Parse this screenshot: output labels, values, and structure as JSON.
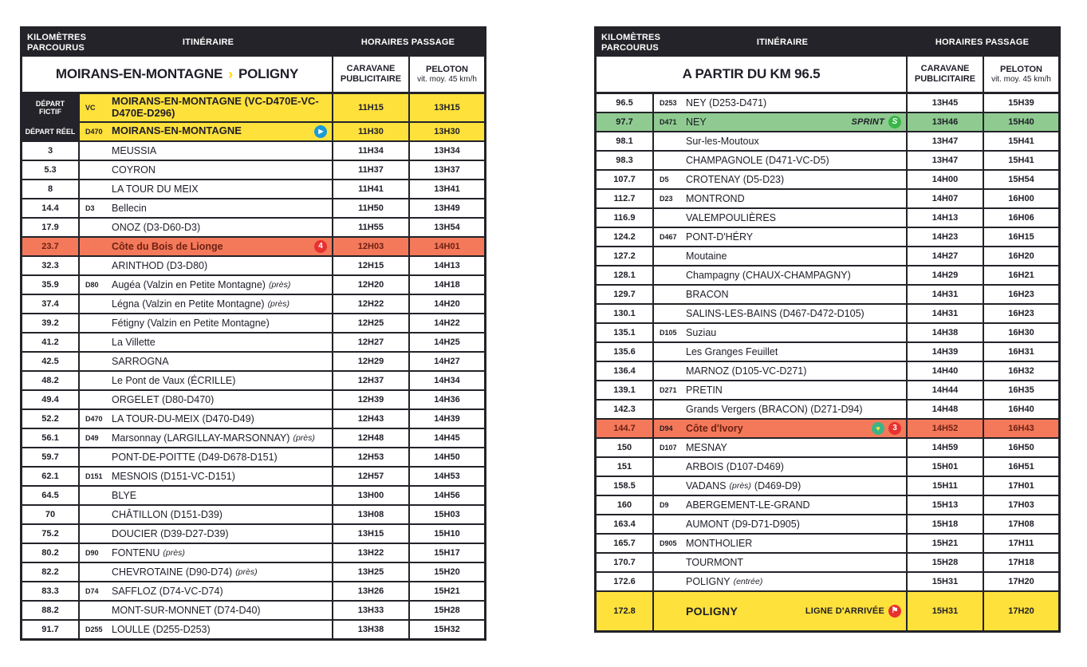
{
  "colors": {
    "header_bg": "#232329",
    "depart_yellow": "#ffe13b",
    "climb_orange": "#f4795a",
    "sprint_green": "#8fcb90",
    "play_blue": "#189cd8",
    "category_red": "#e73230",
    "sprint_icon_green": "#3ab54a",
    "heart_icon_green": "#3cb487",
    "chevron_yellow": "#ffd400"
  },
  "icons": {
    "play-icon": "▶",
    "category-4-icon": "4",
    "category-3-icon": "3",
    "sprint-icon": "S",
    "bonus-heart-icon": "♥",
    "finish-flag-icon": "⚑"
  },
  "tables": [
    {
      "header": {
        "kilometres": "KILOMÈTRES PARCOURUS",
        "itineraire": "ITINÉRAIRE",
        "horaires": "HORAIRES PASSAGE"
      },
      "subheader": {
        "title_from": "MOIRANS-EN-MONTAGNE",
        "title_sep": "›",
        "title_to": "POLIGNY",
        "caravane": "CARAVANE PUBLICITAIRE",
        "peloton": "PELOTON",
        "peloton_sub": "vit. moy. 45 km/h"
      },
      "rows": [
        {
          "label": "DÉPART FICTIF",
          "road": "VC",
          "name": "MOIRANS-EN-MONTAGNE (VC-D470E-VC-D470E-D296)",
          "caravane": "11H15",
          "peloton": "13H15",
          "type": "depart"
        },
        {
          "label": "DÉPART RÉEL",
          "road": "D470",
          "name": "MOIRANS-EN-MONTAGNE",
          "icons": [
            "play-icon"
          ],
          "caravane": "11H30",
          "peloton": "13H30",
          "type": "depart"
        },
        {
          "km": "3",
          "name": "MEUSSIA",
          "caravane": "11H34",
          "peloton": "13H34"
        },
        {
          "km": "5.3",
          "name": "COYRON",
          "caravane": "11H37",
          "peloton": "13H37"
        },
        {
          "km": "8",
          "name": "LA TOUR DU MEIX",
          "caravane": "11H41",
          "peloton": "13H41"
        },
        {
          "km": "14.4",
          "road": "D3",
          "name": "Bellecin",
          "caravane": "11H50",
          "peloton": "13H49"
        },
        {
          "km": "17.9",
          "name": "ONOZ (D3-D60-D3)",
          "caravane": "11H55",
          "peloton": "13H54"
        },
        {
          "km": "23.7",
          "name": "Côte du Bois de Lionge",
          "icons": [
            "category-4-icon"
          ],
          "caravane": "12H03",
          "peloton": "14H01",
          "type": "climb"
        },
        {
          "km": "32.3",
          "name": "ARINTHOD (D3-D80)",
          "caravane": "12H15",
          "peloton": "14H13"
        },
        {
          "km": "35.9",
          "road": "D80",
          "name": "Augéa (Valzin en Petite Montagne)",
          "note": "(près)",
          "caravane": "12H20",
          "peloton": "14H18"
        },
        {
          "km": "37.4",
          "name": "Légna (Valzin en Petite Montagne)",
          "note": "(près)",
          "caravane": "12H22",
          "peloton": "14H20"
        },
        {
          "km": "39.2",
          "name": "Fétigny (Valzin en Petite Montagne)",
          "caravane": "12H25",
          "peloton": "14H22"
        },
        {
          "km": "41.2",
          "name": "La Villette",
          "caravane": "12H27",
          "peloton": "14H25"
        },
        {
          "km": "42.5",
          "name": "SARROGNA",
          "caravane": "12H29",
          "peloton": "14H27"
        },
        {
          "km": "48.2",
          "name": "Le Pont de Vaux (ÉCRILLE)",
          "caravane": "12H37",
          "peloton": "14H34"
        },
        {
          "km": "49.4",
          "name": "ORGELET (D80-D470)",
          "caravane": "12H39",
          "peloton": "14H36"
        },
        {
          "km": "52.2",
          "road": "D470",
          "name": "LA TOUR-DU-MEIX (D470-D49)",
          "caravane": "12H43",
          "peloton": "14H39"
        },
        {
          "km": "56.1",
          "road": "D49",
          "name": "Marsonnay (LARGILLAY-MARSONNAY)",
          "note": "(près)",
          "caravane": "12H48",
          "peloton": "14H45"
        },
        {
          "km": "59.7",
          "name": "PONT-DE-POITTE (D49-D678-D151)",
          "caravane": "12H53",
          "peloton": "14H50"
        },
        {
          "km": "62.1",
          "road": "D151",
          "name": "MESNOIS (D151-VC-D151)",
          "caravane": "12H57",
          "peloton": "14H53"
        },
        {
          "km": "64.5",
          "name": "BLYE",
          "caravane": "13H00",
          "peloton": "14H56"
        },
        {
          "km": "70",
          "name": "CHÂTILLON (D151-D39)",
          "caravane": "13H08",
          "peloton": "15H03"
        },
        {
          "km": "75.2",
          "name": "DOUCIER (D39-D27-D39)",
          "caravane": "13H15",
          "peloton": "15H10"
        },
        {
          "km": "80.2",
          "road": "D90",
          "name": "FONTENU",
          "note": "(près)",
          "caravane": "13H22",
          "peloton": "15H17"
        },
        {
          "km": "82.2",
          "name": "CHEVROTAINE (D90-D74)",
          "note": "(près)",
          "caravane": "13H25",
          "peloton": "15H20"
        },
        {
          "km": "83.3",
          "road": "D74",
          "name": "SAFFLOZ (D74-VC-D74)",
          "caravane": "13H26",
          "peloton": "15H21"
        },
        {
          "km": "88.2",
          "name": "MONT-SUR-MONNET (D74-D40)",
          "caravane": "13H33",
          "peloton": "15H28"
        },
        {
          "km": "91.7",
          "road": "D255",
          "name": "LOULLE (D255-D253)",
          "caravane": "13H38",
          "peloton": "15H32"
        }
      ]
    },
    {
      "header": {
        "kilometres": "KILOMÈTRES PARCOURUS",
        "itineraire": "ITINÉRAIRE",
        "horaires": "HORAIRES PASSAGE"
      },
      "subheader": {
        "title": "A PARTIR DU KM 96.5",
        "caravane": "CARAVANE PUBLICITAIRE",
        "peloton": "PELOTON",
        "peloton_sub": "vit. moy. 45 km/h"
      },
      "rows": [
        {
          "km": "96.5",
          "road": "D253",
          "name": "NEY (D253-D471)",
          "caravane": "13H45",
          "peloton": "15H39"
        },
        {
          "km": "97.7",
          "road": "D471",
          "name": "NEY",
          "tag": "SPRINT",
          "icons": [
            "sprint-icon"
          ],
          "caravane": "13H46",
          "peloton": "15H40",
          "type": "sprint"
        },
        {
          "km": "98.1",
          "name": "Sur-les-Moutoux",
          "caravane": "13H47",
          "peloton": "15H41"
        },
        {
          "km": "98.3",
          "name": "CHAMPAGNOLE (D471-VC-D5)",
          "caravane": "13H47",
          "peloton": "15H41"
        },
        {
          "km": "107.7",
          "road": "D5",
          "name": "CROTENAY (D5-D23)",
          "caravane": "14H00",
          "peloton": "15H54"
        },
        {
          "km": "112.7",
          "road": "D23",
          "name": "MONTROND",
          "caravane": "14H07",
          "peloton": "16H00"
        },
        {
          "km": "116.9",
          "name": "VALEMPOULIÈRES",
          "caravane": "14H13",
          "peloton": "16H06"
        },
        {
          "km": "124.2",
          "road": "D467",
          "name": "PONT-D'HÉRY",
          "caravane": "14H23",
          "peloton": "16H15"
        },
        {
          "km": "127.2",
          "name": "Moutaine",
          "caravane": "14H27",
          "peloton": "16H20"
        },
        {
          "km": "128.1",
          "name": "Champagny (CHAUX-CHAMPAGNY)",
          "caravane": "14H29",
          "peloton": "16H21"
        },
        {
          "km": "129.7",
          "name": "BRACON",
          "caravane": "14H31",
          "peloton": "16H23"
        },
        {
          "km": "130.1",
          "name": "SALINS-LES-BAINS (D467-D472-D105)",
          "caravane": "14H31",
          "peloton": "16H23"
        },
        {
          "km": "135.1",
          "road": "D105",
          "name": "Suziau",
          "caravane": "14H38",
          "peloton": "16H30"
        },
        {
          "km": "135.6",
          "name": "Les Granges Feuillet",
          "caravane": "14H39",
          "peloton": "16H31"
        },
        {
          "km": "136.4",
          "name": "MARNOZ (D105-VC-D271)",
          "caravane": "14H40",
          "peloton": "16H32"
        },
        {
          "km": "139.1",
          "road": "D271",
          "name": "PRETIN",
          "caravane": "14H44",
          "peloton": "16H35"
        },
        {
          "km": "142.3",
          "name": "Grands Vergers (BRACON) (D271-D94)",
          "caravane": "14H48",
          "peloton": "16H40"
        },
        {
          "km": "144.7",
          "road": "D94",
          "name": "Côte d'Ivory",
          "icons": [
            "bonus-heart-icon",
            "category-3-icon"
          ],
          "caravane": "14H52",
          "peloton": "16H43",
          "type": "climb"
        },
        {
          "km": "150",
          "road": "D107",
          "name": "MESNAY",
          "caravane": "14H59",
          "peloton": "16H50"
        },
        {
          "km": "151",
          "name": "ARBOIS (D107-D469)",
          "caravane": "15H01",
          "peloton": "16H51"
        },
        {
          "km": "158.5",
          "name": "VADANS",
          "note": "(près)",
          "name2": "(D469-D9)",
          "caravane": "15H11",
          "peloton": "17H01"
        },
        {
          "km": "160",
          "road": "D9",
          "name": "ABERGEMENT-LE-GRAND",
          "caravane": "15H13",
          "peloton": "17H03"
        },
        {
          "km": "163.4",
          "name": "AUMONT (D9-D71-D905)",
          "caravane": "15H18",
          "peloton": "17H08"
        },
        {
          "km": "165.7",
          "road": "D905",
          "name": "MONTHOLIER",
          "caravane": "15H21",
          "peloton": "17H11"
        },
        {
          "km": "170.7",
          "name": "TOURMONT",
          "caravane": "15H28",
          "peloton": "17H18"
        },
        {
          "km": "172.6",
          "name": "POLIGNY",
          "note": "(entrée)",
          "caravane": "15H31",
          "peloton": "17H20"
        },
        {
          "km": "172.8",
          "name": "POLIGNY",
          "tag": "LIGNE D'ARRIVÉE",
          "icons": [
            "finish-flag-icon"
          ],
          "caravane": "15H31",
          "peloton": "17H20",
          "type": "finish"
        }
      ]
    }
  ]
}
